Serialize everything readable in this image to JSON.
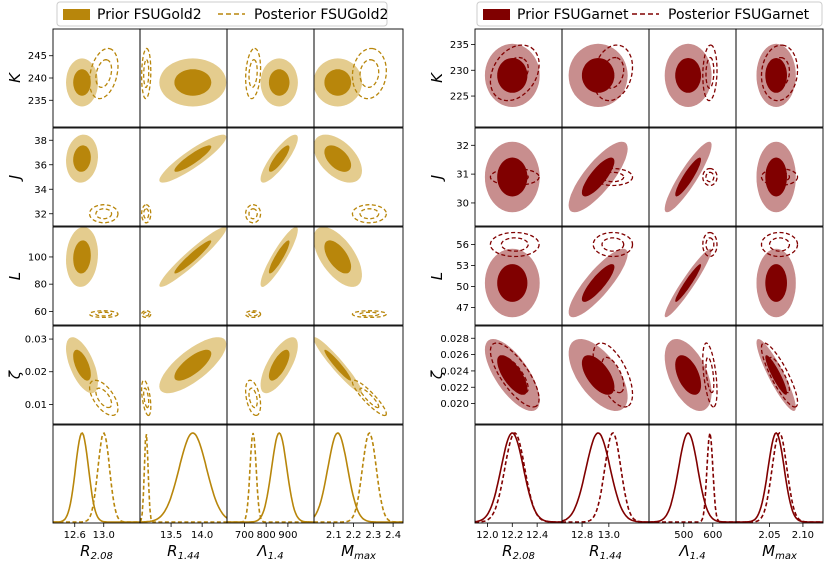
{
  "chart_data": [
    {
      "type": "corner",
      "model": "FSUGold2",
      "legend": {
        "position": "top",
        "prior_label": "Prior FSUGold2",
        "posterior_label": "Posterior FSUGold2"
      },
      "colors": {
        "prior_inner": "#b8860b",
        "prior_outer": "#e4cc8e",
        "posterior": "#b8860b"
      },
      "row_labels": [
        "K",
        "J",
        "L",
        "ζ"
      ],
      "col_labels": [
        {
          "base": "R",
          "sub": "2.08"
        },
        {
          "base": "R",
          "sub": "1.44"
        },
        {
          "base": "Λ",
          "sub": "1.4"
        },
        {
          "base": "M",
          "sub": "max"
        }
      ],
      "x_ranges": [
        [
          12.3,
          13.5
        ],
        [
          13.0,
          14.4
        ],
        [
          620,
          1020
        ],
        [
          2.0,
          2.45
        ]
      ],
      "y_ranges": [
        [
          229,
          251
        ],
        [
          31,
          39
        ],
        [
          50,
          122
        ],
        [
          0.004,
          0.034
        ]
      ],
      "x_ticks": [
        [
          12.6,
          13.0
        ],
        [
          13.5,
          14.0
        ],
        [
          700,
          800,
          900
        ],
        [
          2.1,
          2.2,
          2.3,
          2.4
        ]
      ],
      "x_tick_labels": [
        [
          "12.6",
          "13.0"
        ],
        [
          "13.5",
          "14.0"
        ],
        [
          "700",
          "800",
          "900"
        ],
        [
          "2.1",
          "2.2",
          "2.3",
          "2.4"
        ]
      ],
      "y_ticks": [
        [
          235,
          240,
          245
        ],
        [
          32,
          34,
          36,
          38
        ],
        [
          60,
          80,
          100
        ],
        [
          0.01,
          0.02,
          0.03
        ]
      ],
      "y_tick_labels": [
        [
          "235",
          "240",
          "245"
        ],
        [
          "32",
          "34",
          "36",
          "38"
        ],
        [
          "60",
          "80",
          "100"
        ],
        [
          "0.01",
          "0.02",
          "0.03"
        ]
      ],
      "prior_mean": [
        12.7,
        13.85,
        860,
        2.12
      ],
      "prior_sd": [
        0.09,
        0.22,
        35,
        0.05
      ],
      "posterior_mean": [
        13.0,
        13.1,
        740,
        2.28
      ],
      "posterior_sd": [
        0.08,
        0.03,
        14,
        0.035
      ],
      "prior_y_mean": [
        239,
        36.5,
        100,
        0.022
      ],
      "prior_y_sd": [
        2.2,
        0.8,
        9,
        0.0035
      ],
      "posterior_y_mean": [
        241,
        32,
        58,
        0.012
      ],
      "posterior_y_sd": [
        2.3,
        0.3,
        1.0,
        0.0022
      ],
      "prior_corr": [
        [
          0,
          0,
          0,
          0
        ],
        [
          0.1,
          0.9,
          0.85,
          -0.5
        ],
        [
          0.1,
          0.95,
          0.9,
          -0.6
        ],
        [
          -0.6,
          0.75,
          0.7,
          -0.95
        ]
      ],
      "posterior_corr": [
        [
          0.3,
          0.1,
          0.2,
          0.1
        ],
        [
          0,
          0,
          0,
          0
        ],
        [
          0,
          0,
          0,
          0
        ],
        [
          -0.6,
          -0.5,
          -0.4,
          -0.9
        ]
      ]
    },
    {
      "type": "corner",
      "model": "FSUGarnet",
      "legend": {
        "position": "top",
        "prior_label": "Prior FSUGarnet",
        "posterior_label": "Posterior FSUGarnet"
      },
      "colors": {
        "prior_inner": "#800000",
        "prior_outer": "#c88e8e",
        "posterior": "#800000"
      },
      "row_labels": [
        "K",
        "J",
        "L",
        "ζ"
      ],
      "col_labels": [
        {
          "base": "R",
          "sub": "2.08"
        },
        {
          "base": "R",
          "sub": "1.44"
        },
        {
          "base": "Λ",
          "sub": "1.4"
        },
        {
          "base": "M",
          "sub": "max"
        }
      ],
      "x_ranges": [
        [
          11.9,
          12.6
        ],
        [
          12.65,
          13.3
        ],
        [
          380,
          680
        ],
        [
          2.0,
          2.13
        ]
      ],
      "y_ranges": [
        [
          219,
          238
        ],
        [
          29.2,
          32.6
        ],
        [
          44.5,
          58.5
        ],
        [
          0.0175,
          0.0295
        ]
      ],
      "x_ticks": [
        [
          12.0,
          12.2,
          12.4
        ],
        [
          12.8,
          13.0
        ],
        [
          500,
          600
        ],
        [
          2.05,
          2.1
        ]
      ],
      "x_tick_labels": [
        [
          "12.0",
          "12.2",
          "12.4"
        ],
        [
          "12.8",
          "13.0"
        ],
        [
          "500",
          "600"
        ],
        [
          "2.05",
          "2.10"
        ]
      ],
      "y_ticks": [
        [
          225,
          230,
          235
        ],
        [
          30,
          31,
          32
        ],
        [
          47,
          50,
          53,
          56
        ],
        [
          0.02,
          0.022,
          0.024,
          0.026,
          0.028
        ]
      ],
      "y_tick_labels": [
        [
          "225",
          "230",
          "235"
        ],
        [
          "30",
          "31",
          "32"
        ],
        [
          "47",
          "50",
          "53",
          "56"
        ],
        [
          "0.020",
          "0.022",
          "0.024",
          "0.026",
          "0.028"
        ]
      ],
      "prior_mean": [
        12.2,
        12.92,
        515,
        2.06
      ],
      "prior_sd": [
        0.09,
        0.09,
        33,
        0.012
      ],
      "posterior_mean": [
        12.22,
        13.03,
        590,
        2.065
      ],
      "posterior_sd": [
        0.08,
        0.06,
        10,
        0.011
      ],
      "prior_y_mean": [
        229,
        30.9,
        50.5,
        0.0235
      ],
      "prior_y_sd": [
        2.5,
        0.5,
        2.0,
        0.0018
      ],
      "posterior_y_mean": [
        229.5,
        30.9,
        56.0,
        0.0235
      ],
      "posterior_y_sd": [
        2.2,
        0.12,
        0.7,
        0.0016
      ],
      "prior_corr": [
        [
          0,
          0,
          0,
          0
        ],
        [
          0,
          0.8,
          0.9,
          0
        ],
        [
          0,
          0.85,
          0.95,
          0
        ],
        [
          -0.7,
          -0.6,
          -0.5,
          -0.9
        ]
      ],
      "posterior_corr": [
        [
          0.3,
          0.2,
          0.1,
          0.1
        ],
        [
          0,
          0,
          0,
          0
        ],
        [
          0,
          0,
          0,
          0
        ],
        [
          -0.75,
          -0.6,
          -0.5,
          -0.85
        ]
      ]
    }
  ]
}
